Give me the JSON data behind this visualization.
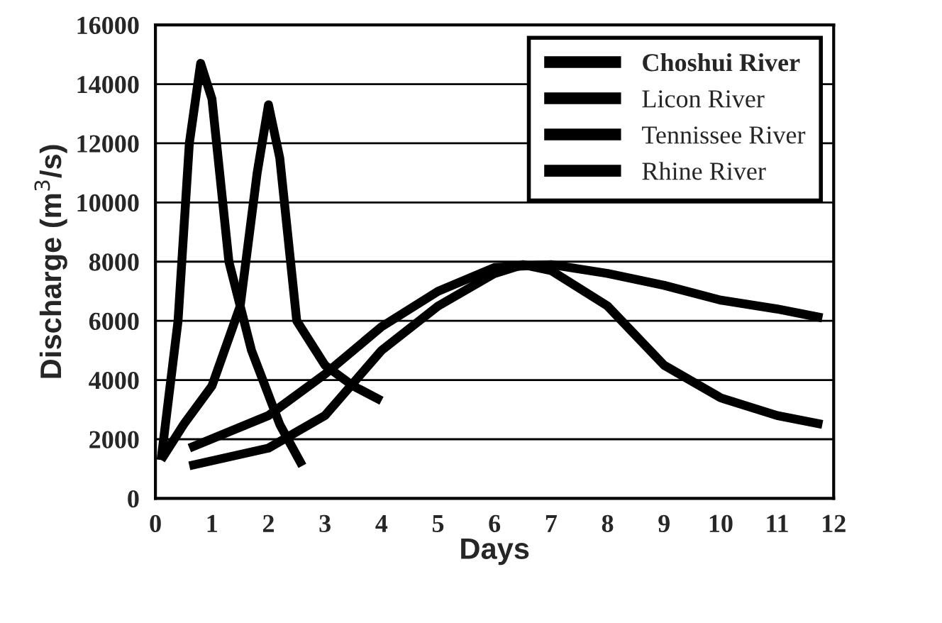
{
  "chart_data": {
    "type": "line",
    "xlabel": "Days",
    "ylabel": "Discharge (m$^{3}$/s)",
    "xlim": [
      0,
      12
    ],
    "xticks": [
      0,
      1,
      2,
      3,
      4,
      5,
      6,
      7,
      8,
      9,
      10,
      11,
      12
    ],
    "ylim": [
      0,
      16000
    ],
    "yticks": [
      0,
      2000,
      4000,
      6000,
      8000,
      10000,
      12000,
      14000,
      16000
    ],
    "grid": "y",
    "legend": "top right",
    "line_style": "solid",
    "marker": "none",
    "series": [
      {
        "name": "Choshui River",
        "color": "#000000",
        "x": [
          0.1,
          0.4,
          0.6,
          0.8,
          1.0,
          1.3,
          1.7,
          2.2,
          2.6
        ],
        "values": [
          1300,
          6000,
          12000,
          14700,
          13500,
          8000,
          5000,
          2500,
          1100
        ]
      },
      {
        "name": "Licon River",
        "color": "#000000",
        "x": [
          0.1,
          0.5,
          1.0,
          1.5,
          1.8,
          2.0,
          2.2,
          2.5,
          3.0,
          3.5,
          4.0
        ],
        "values": [
          1300,
          2500,
          3800,
          6500,
          11000,
          13300,
          11500,
          6000,
          4500,
          3800,
          3300
        ]
      },
      {
        "name": "Tennissee River",
        "color": "#000000",
        "x": [
          0.6,
          2,
          3,
          4,
          5,
          6,
          6.5,
          7,
          8,
          9,
          10,
          11,
          11.8
        ],
        "values": [
          1100,
          1700,
          2800,
          5000,
          6500,
          7600,
          7900,
          7700,
          6500,
          4500,
          3400,
          2800,
          2500
        ]
      },
      {
        "name": "Rhine River",
        "color": "#000000",
        "x": [
          0.6,
          2,
          3,
          4,
          5,
          6,
          7,
          8,
          9,
          10,
          11,
          11.8
        ],
        "values": [
          1700,
          2800,
          4200,
          5800,
          7000,
          7800,
          7900,
          7600,
          7200,
          6700,
          6400,
          6100
        ]
      }
    ]
  }
}
